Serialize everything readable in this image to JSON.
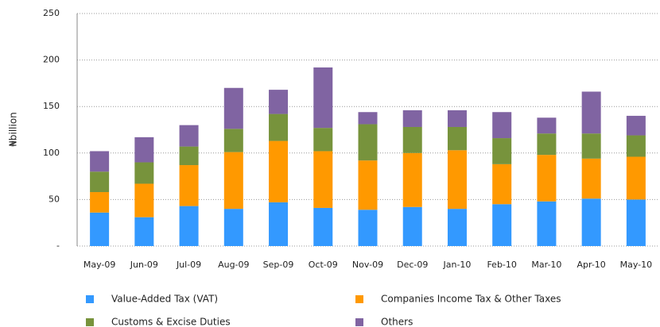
{
  "chart_data": {
    "type": "stacked-bar",
    "y_label": "₦billion",
    "categories": [
      "May-09",
      "Jun-09",
      "Jul-09",
      "Aug-09",
      "Sep-09",
      "Oct-09",
      "Nov-09",
      "Dec-09",
      "Jan-10",
      "Feb-10",
      "Mar-10",
      "Apr-10",
      "May-10"
    ],
    "series": [
      {
        "name": "Value-Added Tax (VAT)",
        "color": "#3399ff",
        "values": [
          36,
          31,
          43,
          40,
          47,
          41,
          39,
          42,
          40,
          45,
          48,
          51,
          50
        ]
      },
      {
        "name": "Companies Income Tax & Other Taxes",
        "color": "#ff9900",
        "values": [
          22,
          36,
          44,
          61,
          66,
          61,
          53,
          58,
          63,
          43,
          50,
          43,
          46
        ]
      },
      {
        "name": "Customs & Excise Duties",
        "color": "#77933c",
        "values": [
          22,
          23,
          20,
          25,
          29,
          25,
          39,
          28,
          25,
          28,
          23,
          27,
          23
        ]
      },
      {
        "name": "Others",
        "color": "#8064a2",
        "values": [
          22,
          27,
          23,
          44,
          26,
          65,
          13,
          18,
          18,
          28,
          17,
          45,
          21
        ]
      }
    ],
    "ylim": [
      0,
      250
    ],
    "yticks": [
      {
        "value": 0,
        "label": "-"
      },
      50,
      100,
      150,
      200,
      250
    ],
    "grid": true,
    "legend": "bottom"
  }
}
